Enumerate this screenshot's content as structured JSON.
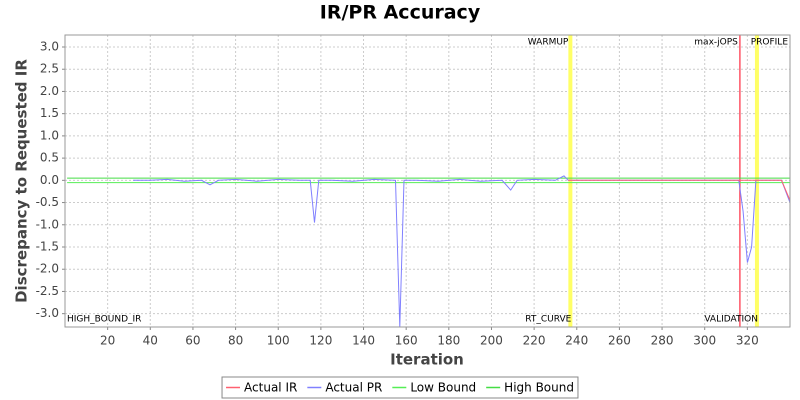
{
  "chart_data": {
    "type": "line",
    "title": "IR/PR Accuracy",
    "xlabel": "Iteration",
    "ylabel": "Discrepancy to Requested IR",
    "x": [
      1,
      32,
      40,
      48,
      56,
      64,
      68,
      72,
      80,
      90,
      100,
      110,
      115,
      117,
      119,
      125,
      135,
      145,
      155,
      157,
      159,
      165,
      175,
      185,
      195,
      205,
      209,
      212,
      220,
      230,
      234,
      236,
      240,
      250,
      260,
      280,
      300,
      316,
      318,
      320,
      322,
      324,
      330,
      336,
      340
    ],
    "series": [
      {
        "name": "Actual IR",
        "color": "#ff6070",
        "values": [
          null,
          null,
          null,
          null,
          null,
          null,
          null,
          null,
          null,
          null,
          null,
          null,
          null,
          null,
          null,
          null,
          null,
          null,
          null,
          null,
          null,
          null,
          null,
          null,
          null,
          null,
          null,
          null,
          null,
          null,
          null,
          0,
          0,
          0,
          0,
          0,
          0,
          0,
          0,
          0,
          0,
          0,
          0,
          0,
          -0.45
        ]
      },
      {
        "name": "Actual PR",
        "color": "#8080ff",
        "values": [
          null,
          0,
          0,
          0.02,
          -0.02,
          0,
          -0.1,
          0,
          0.02,
          -0.02,
          0.02,
          0,
          0,
          -0.95,
          0,
          0,
          -0.02,
          0.02,
          0,
          -3.3,
          0,
          0,
          -0.02,
          0.02,
          -0.02,
          0,
          -0.22,
          0,
          0.02,
          0,
          0.1,
          0,
          0,
          0,
          0,
          0,
          0,
          0,
          -0.7,
          -1.85,
          -1.5,
          0,
          0,
          0,
          -0.5
        ]
      },
      {
        "name": "Low Bound",
        "color": "#55ee55",
        "values": [
          -0.05,
          -0.05,
          -0.05,
          -0.05,
          -0.05,
          -0.05,
          -0.05,
          -0.05,
          -0.05,
          -0.05,
          -0.05,
          -0.05,
          -0.05,
          -0.05,
          -0.05,
          -0.05,
          -0.05,
          -0.05,
          -0.05,
          -0.05,
          -0.05,
          -0.05,
          -0.05,
          -0.05,
          -0.05,
          -0.05,
          -0.05,
          -0.05,
          -0.05,
          -0.05,
          -0.05,
          -0.05,
          -0.05,
          -0.05,
          -0.05,
          -0.05,
          -0.05,
          -0.05,
          -0.05,
          -0.05,
          -0.05,
          -0.05,
          -0.05,
          -0.05,
          -0.05
        ]
      },
      {
        "name": "High Bound",
        "color": "#44dd44",
        "values": [
          0.05,
          0.05,
          0.05,
          0.05,
          0.05,
          0.05,
          0.05,
          0.05,
          0.05,
          0.05,
          0.05,
          0.05,
          0.05,
          0.05,
          0.05,
          0.05,
          0.05,
          0.05,
          0.05,
          0.05,
          0.05,
          0.05,
          0.05,
          0.05,
          0.05,
          0.05,
          0.05,
          0.05,
          0.05,
          0.05,
          0.05,
          0.05,
          0.05,
          0.05,
          0.05,
          0.05,
          0.05,
          0.05,
          0.05,
          0.05,
          0.05,
          0.05,
          0.05,
          0.05,
          0.05
        ]
      }
    ],
    "xlim": [
      0,
      340
    ],
    "xticks": [
      20,
      40,
      60,
      80,
      100,
      120,
      140,
      160,
      180,
      200,
      220,
      240,
      260,
      280,
      300,
      320
    ],
    "ylim": [
      -3.3,
      3.27
    ],
    "yticks": [
      {
        "value": -3,
        "label": "-3.0"
      },
      -2.5,
      {
        "value": -2,
        "label": "-2.0"
      },
      -1.5,
      {
        "value": -1,
        "label": "-1.0"
      },
      -0.5,
      {
        "value": 0,
        "label": "0.0"
      },
      0.5,
      {
        "value": 1,
        "label": "1.0"
      },
      1.5,
      {
        "value": 2,
        "label": "2.0"
      },
      2.5,
      {
        "value": 3,
        "label": "3.0"
      }
    ],
    "grid": true,
    "legend": "bottom",
    "markers": [
      {
        "x": 237,
        "color": "#ffff66",
        "top_label": "WARMUP",
        "bottom_label": "RT_CURVE"
      },
      {
        "x": 316.5,
        "color": "#ff5566",
        "top_label": "max-jOPS"
      },
      {
        "x": 324.5,
        "color": "#ffff66",
        "top_label": "PROFILE",
        "bottom_label": "VALIDATION"
      }
    ],
    "annotations": [
      "HIGH_BOUND_IR"
    ]
  }
}
